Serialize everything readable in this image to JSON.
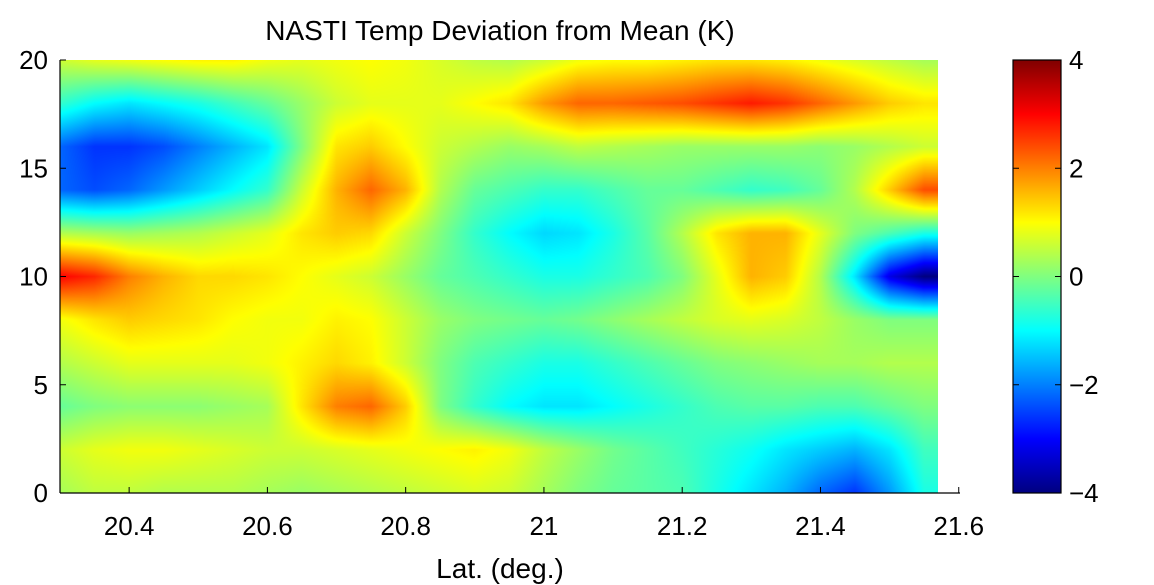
{
  "chart_data": {
    "type": "heatmap",
    "title": "NASTI Temp Deviation from Mean (K)",
    "xlabel": "Lat. (deg.)",
    "ylabel": "",
    "xlim": [
      20.3,
      21.57
    ],
    "ylim": [
      0,
      20
    ],
    "xticks": [
      20.4,
      20.6,
      20.8,
      21,
      21.2,
      21.4,
      21.6
    ],
    "xtick_labels": [
      "20.4",
      "20.6",
      "20.8",
      "21",
      "21.2",
      "21.4",
      "21.6"
    ],
    "yticks": [
      0,
      5,
      10,
      15,
      20
    ],
    "ytick_labels": [
      "0",
      "5",
      "10",
      "15",
      "20"
    ],
    "colorbar": {
      "colormap": "jet",
      "clim": [
        -4,
        4
      ],
      "ticks": [
        -4,
        -2,
        0,
        2,
        4
      ],
      "tick_labels": [
        "−4",
        "−2",
        "0",
        "2",
        "4"
      ]
    },
    "x": [
      20.3,
      20.35,
      20.4,
      20.45,
      20.5,
      20.55,
      20.6,
      20.65,
      20.7,
      20.75,
      20.8,
      20.85,
      20.9,
      20.95,
      21.0,
      21.05,
      21.1,
      21.15,
      21.2,
      21.25,
      21.3,
      21.35,
      21.4,
      21.45,
      21.5,
      21.55
    ],
    "y": [
      0,
      2,
      4,
      6,
      8,
      10,
      12,
      14,
      16,
      18,
      20
    ],
    "z": [
      [
        0.3,
        0.5,
        0.5,
        0.4,
        0.4,
        0.4,
        0.3,
        0.2,
        0.3,
        0.4,
        0.5,
        0.6,
        0.7,
        0.6,
        0.3,
        0.0,
        -0.2,
        -0.3,
        -0.4,
        -0.8,
        -1.2,
        -1.6,
        -2.2,
        -2.6,
        -1.8,
        -0.8
      ],
      [
        0.6,
        0.8,
        0.9,
        0.9,
        0.8,
        0.7,
        0.6,
        0.6,
        0.7,
        0.8,
        0.9,
        1.0,
        1.1,
        0.9,
        0.5,
        0.2,
        -0.1,
        -0.3,
        -0.5,
        -0.7,
        -0.9,
        -1.2,
        -1.4,
        -1.6,
        -1.2,
        -0.5
      ],
      [
        -0.2,
        0.0,
        0.1,
        0.1,
        0.1,
        0.2,
        0.3,
        1.2,
        2.0,
        2.2,
        1.4,
        0.0,
        -0.6,
        -1.0,
        -1.2,
        -1.2,
        -1.0,
        -0.8,
        -0.6,
        -0.4,
        -0.3,
        -0.3,
        -0.4,
        -0.4,
        -0.2,
        0.0
      ],
      [
        0.4,
        0.6,
        0.8,
        0.8,
        0.8,
        0.8,
        0.9,
        1.1,
        1.3,
        1.1,
        0.6,
        0.0,
        -0.4,
        -0.6,
        -0.8,
        -0.8,
        -0.6,
        -0.4,
        -0.2,
        0.0,
        0.1,
        0.2,
        0.3,
        0.3,
        0.4,
        0.4
      ],
      [
        0.9,
        1.2,
        1.4,
        1.3,
        1.2,
        1.0,
        0.9,
        0.9,
        1.1,
        1.0,
        0.6,
        0.2,
        0.0,
        -0.1,
        -0.2,
        -0.1,
        0.1,
        0.3,
        0.5,
        0.7,
        0.8,
        0.7,
        0.5,
        0.2,
        0.0,
        0.0
      ],
      [
        3.0,
        2.7,
        2.0,
        1.6,
        1.3,
        1.3,
        1.2,
        1.0,
        0.8,
        0.6,
        0.2,
        -0.2,
        -0.4,
        -0.6,
        -0.8,
        -0.8,
        -0.6,
        -0.4,
        0.0,
        0.8,
        1.6,
        1.4,
        0.4,
        -1.2,
        -3.2,
        -4.0
      ],
      [
        0.4,
        0.3,
        0.2,
        0.3,
        0.4,
        0.6,
        0.8,
        1.2,
        1.4,
        1.3,
        0.6,
        0.0,
        -0.6,
        -1.0,
        -1.3,
        -1.2,
        -0.8,
        -0.3,
        0.4,
        1.2,
        1.6,
        1.6,
        0.8,
        0.0,
        -0.4,
        -0.8
      ],
      [
        -2.2,
        -2.4,
        -2.2,
        -1.8,
        -1.4,
        -1.0,
        -0.6,
        0.6,
        1.6,
        2.2,
        1.6,
        0.4,
        -0.2,
        -0.4,
        -0.6,
        -0.6,
        -0.4,
        -0.2,
        -0.2,
        -0.4,
        -0.6,
        -0.5,
        -0.2,
        0.4,
        1.4,
        2.4
      ],
      [
        -2.2,
        -2.6,
        -2.6,
        -2.4,
        -2.0,
        -1.6,
        -1.2,
        0.0,
        1.2,
        1.4,
        1.0,
        0.6,
        0.4,
        0.2,
        0.3,
        0.5,
        0.4,
        0.3,
        0.2,
        0.2,
        0.2,
        0.2,
        0.1,
        0.2,
        0.4,
        0.6
      ],
      [
        -0.6,
        -1.0,
        -1.2,
        -1.0,
        -0.8,
        -0.5,
        -0.2,
        0.2,
        0.6,
        0.8,
        0.8,
        0.8,
        1.0,
        1.2,
        1.8,
        2.2,
        2.2,
        2.3,
        2.4,
        2.6,
        2.8,
        2.6,
        2.2,
        1.8,
        1.4,
        1.2
      ],
      [
        0.6,
        0.8,
        0.9,
        1.0,
        1.1,
        1.1,
        0.9,
        0.8,
        0.9,
        1.0,
        0.9,
        0.7,
        0.5,
        0.4,
        0.6,
        0.9,
        1.0,
        1.0,
        1.1,
        1.2,
        1.2,
        1.1,
        0.9,
        0.7,
        0.5,
        0.3
      ]
    ]
  }
}
